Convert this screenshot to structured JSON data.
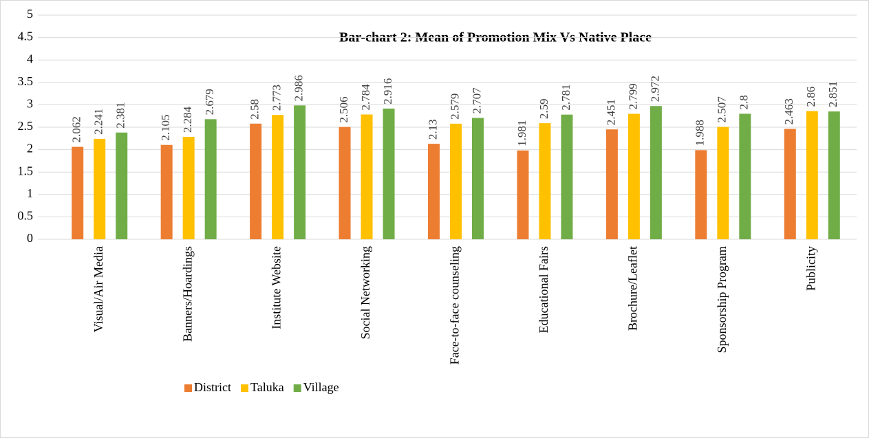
{
  "chart_data": {
    "type": "bar",
    "title": "Bar-chart 2: Mean of Promotion Mix Vs Native Place",
    "categories": [
      "Visual/Air Media",
      "Banners/Hoardings",
      "Institute Website",
      "Social Networking",
      "Face-to-face counseling",
      "Educational Fairs",
      "Brochure/Leaflet",
      "Sponsorship Program",
      "Publicity"
    ],
    "series": [
      {
        "name": "District",
        "color": "#ed7d31",
        "values": [
          2.062,
          2.105,
          2.58,
          2.506,
          2.13,
          1.981,
          2.451,
          1.988,
          2.463
        ]
      },
      {
        "name": "Taluka",
        "color": "#ffc000",
        "values": [
          2.241,
          2.284,
          2.773,
          2.784,
          2.579,
          2.59,
          2.799,
          2.507,
          2.86
        ]
      },
      {
        "name": "Village",
        "color": "#70ad47",
        "values": [
          2.381,
          2.679,
          2.986,
          2.916,
          2.707,
          2.781,
          2.972,
          2.8,
          2.851
        ]
      }
    ],
    "ylim": [
      0,
      5
    ],
    "yticks": [
      0,
      0.5,
      1,
      1.5,
      2,
      2.5,
      3,
      3.5,
      4,
      4.5,
      5
    ],
    "grid": true,
    "legend": "bottom-left"
  }
}
